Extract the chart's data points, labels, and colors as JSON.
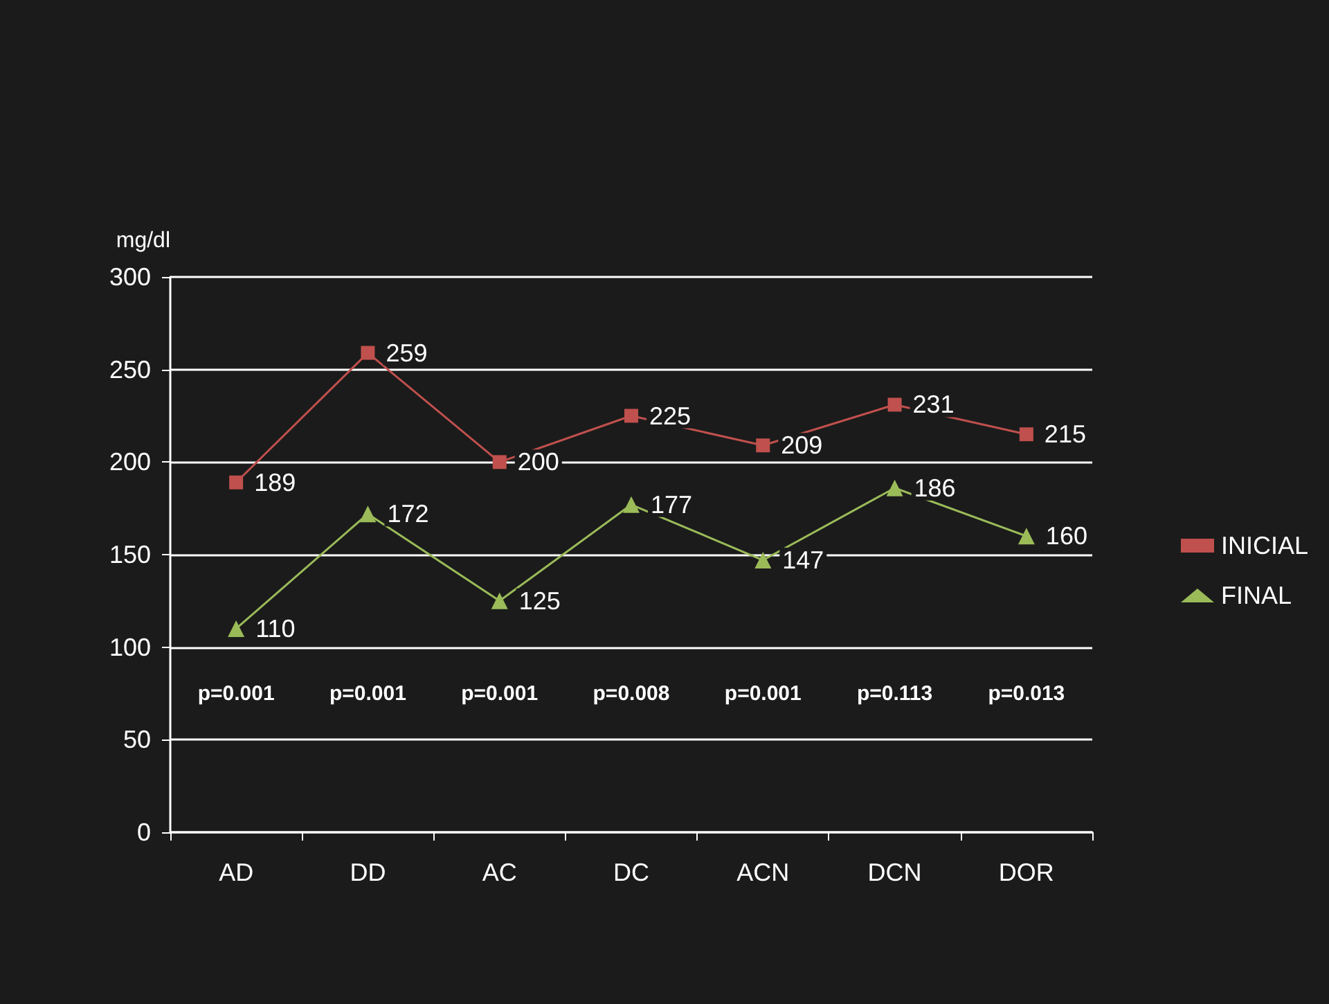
{
  "chart_data": {
    "type": "line",
    "ylabel": "mg/dl",
    "categories": [
      "AD",
      "DD",
      "AC",
      "DC",
      "ACN",
      "DCN",
      "DOR"
    ],
    "series": [
      {
        "name": "INICIAL",
        "color": "#c0504d",
        "marker": "square",
        "values": [
          189,
          259,
          200,
          225,
          209,
          231,
          215
        ]
      },
      {
        "name": "FINAL",
        "color": "#9bbb59",
        "marker": "triangle",
        "values": [
          110,
          172,
          125,
          177,
          147,
          186,
          160
        ]
      }
    ],
    "ylim": [
      0,
      300
    ],
    "yticks": [
      0,
      50,
      100,
      150,
      200,
      250,
      300
    ],
    "grid": "y",
    "legend": "right",
    "data_labels": true,
    "annotations": [
      "p=0.001",
      "p=0.001",
      "p=0.001",
      "p=0.008",
      "p=0.001",
      "p=0.113",
      "p=0.013"
    ]
  }
}
